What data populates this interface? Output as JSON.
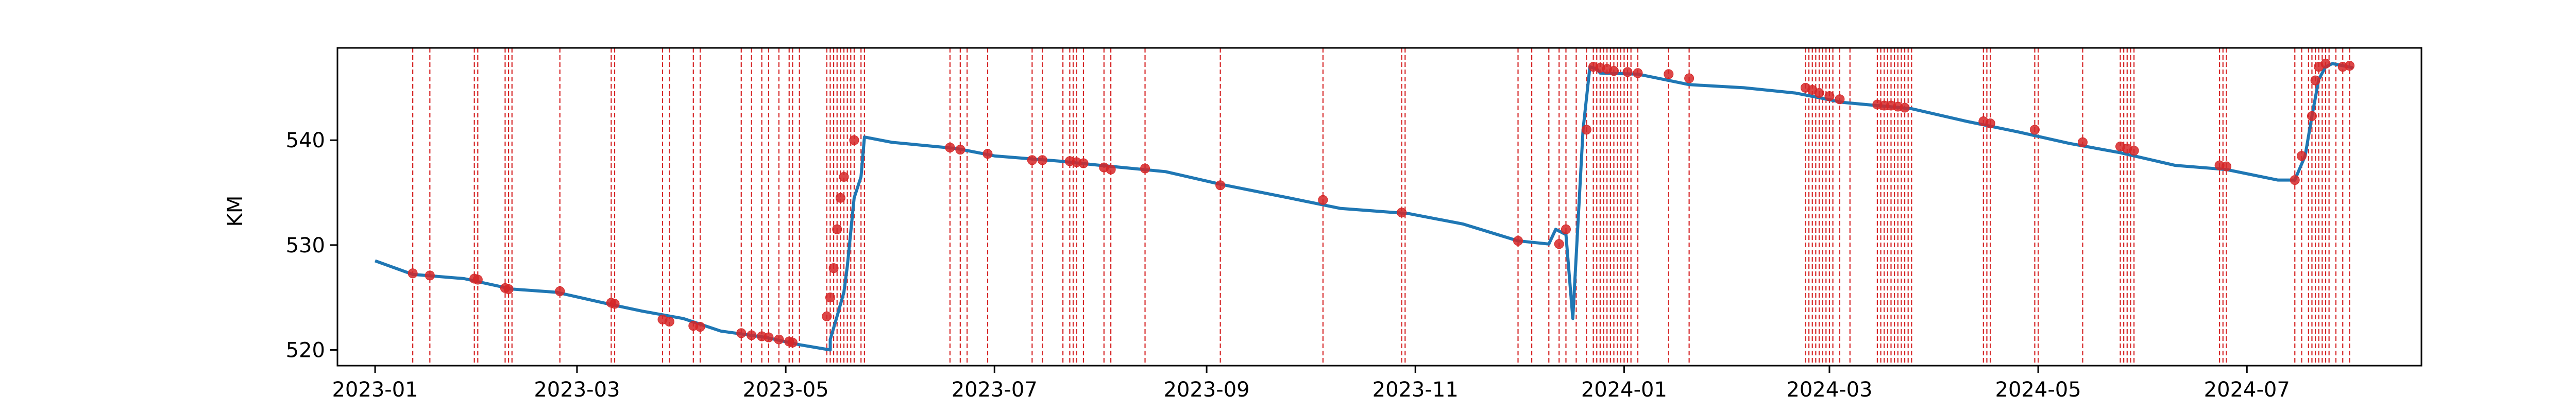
{
  "chart_data": {
    "type": "line",
    "title": "",
    "xlabel": "",
    "ylabel": "KM",
    "x_axis": "date",
    "xlim": [
      "2022-12-21",
      "2024-08-21"
    ],
    "ylim": [
      518.5,
      548.8
    ],
    "x_ticks": [
      "2023-01",
      "2023-03",
      "2023-05",
      "2023-07",
      "2023-09",
      "2023-11",
      "2024-01",
      "2024-03",
      "2024-05",
      "2024-07"
    ],
    "y_ticks": [
      520,
      530,
      540
    ],
    "grid": false,
    "legend": "none",
    "colors": {
      "line": "#1f77b4",
      "marker": "#d62728",
      "event_line": "#d62728"
    },
    "series": [
      {
        "x": [
          "2023-01-01",
          "2023-01-12",
          "2023-01-27",
          "2023-02-10",
          "2023-02-23",
          "2023-03-10",
          "2023-03-20",
          "2023-04-01",
          "2023-04-12",
          "2023-04-25",
          "2023-05-05",
          "2023-05-14",
          "2023-05-14",
          "2023-05-16",
          "2023-05-18",
          "2023-05-19",
          "2023-05-21",
          "2023-05-23",
          "2023-05-24",
          "2023-06-01",
          "2023-06-20",
          "2023-07-01",
          "2023-07-20",
          "2023-08-01",
          "2023-08-20",
          "2023-09-05",
          "2023-09-25",
          "2023-10-10",
          "2023-10-30",
          "2023-11-15",
          "2023-12-01",
          "2023-12-10",
          "2023-12-12",
          "2023-12-15",
          "2023-12-17",
          "2023-12-17",
          "2023-12-20",
          "2023-12-22",
          "2023-12-24",
          "2023-12-25",
          "2024-01-05",
          "2024-01-20",
          "2024-02-05",
          "2024-02-20",
          "2024-03-05",
          "2024-03-25",
          "2024-04-10",
          "2024-04-25",
          "2024-05-10",
          "2024-05-25",
          "2024-06-10",
          "2024-06-25",
          "2024-07-10",
          "2024-07-15",
          "2024-07-18",
          "2024-07-20",
          "2024-07-22",
          "2024-07-24",
          "2024-07-26",
          "2024-08-01"
        ],
        "y": [
          528.5,
          527.2,
          526.8,
          525.8,
          525.5,
          524.4,
          523.7,
          523.0,
          521.8,
          521.2,
          520.5,
          520.0,
          521.0,
          523.2,
          525.5,
          528.0,
          534.5,
          536.5,
          540.3,
          539.8,
          539.2,
          538.5,
          538.0,
          537.6,
          537.0,
          535.8,
          534.5,
          533.5,
          533.0,
          532.0,
          530.4,
          530.1,
          531.5,
          531.0,
          523.0,
          523.0,
          541.0,
          547.0,
          546.8,
          546.4,
          546.3,
          545.3,
          545.0,
          544.5,
          543.6,
          543.0,
          541.8,
          540.8,
          539.7,
          538.8,
          537.6,
          537.2,
          536.2,
          536.2,
          538.5,
          542.3,
          545.8,
          547.0,
          547.3,
          546.9
        ]
      }
    ],
    "markers": {
      "x": [
        "2023-01-12",
        "2023-01-17",
        "2023-01-30",
        "2023-01-31",
        "2023-02-08",
        "2023-02-09",
        "2023-02-24",
        "2023-03-11",
        "2023-03-12",
        "2023-03-26",
        "2023-03-28",
        "2023-04-04",
        "2023-04-06",
        "2023-04-18",
        "2023-04-21",
        "2023-04-24",
        "2023-04-26",
        "2023-04-29",
        "2023-05-02",
        "2023-05-03",
        "2023-05-13",
        "2023-05-14",
        "2023-05-15",
        "2023-05-16",
        "2023-05-17",
        "2023-05-18",
        "2023-05-21",
        "2023-06-18",
        "2023-06-21",
        "2023-06-29",
        "2023-07-12",
        "2023-07-15",
        "2023-07-23",
        "2023-07-25",
        "2023-07-27",
        "2023-08-02",
        "2023-08-04",
        "2023-08-14",
        "2023-09-05",
        "2023-10-05",
        "2023-10-28",
        "2023-12-01",
        "2023-12-13",
        "2023-12-15",
        "2023-12-21",
        "2023-12-23",
        "2023-12-25",
        "2023-12-27",
        "2023-12-29",
        "2024-01-02",
        "2024-01-05",
        "2024-01-14",
        "2024-01-20",
        "2024-02-23",
        "2024-02-25",
        "2024-02-27",
        "2024-03-01",
        "2024-03-04",
        "2024-03-15",
        "2024-03-17",
        "2024-03-19",
        "2024-03-21",
        "2024-03-23",
        "2024-04-15",
        "2024-04-17",
        "2024-04-30",
        "2024-05-14",
        "2024-05-25",
        "2024-05-27",
        "2024-05-29",
        "2024-06-23",
        "2024-06-25",
        "2024-07-15",
        "2024-07-17",
        "2024-07-20",
        "2024-07-21",
        "2024-07-22",
        "2024-07-24",
        "2024-07-29",
        "2024-07-31"
      ],
      "y": [
        527.3,
        527.1,
        526.8,
        526.7,
        525.9,
        525.8,
        525.6,
        524.5,
        524.4,
        522.9,
        522.7,
        522.3,
        522.2,
        521.6,
        521.4,
        521.3,
        521.2,
        521.0,
        520.8,
        520.7,
        523.2,
        525.0,
        527.8,
        531.5,
        534.5,
        536.5,
        540.0,
        539.3,
        539.1,
        538.7,
        538.1,
        538.1,
        538.0,
        537.9,
        537.8,
        537.4,
        537.2,
        537.3,
        535.7,
        534.3,
        533.1,
        530.4,
        530.1,
        531.5,
        541.0,
        547.0,
        546.9,
        546.8,
        546.6,
        546.5,
        546.4,
        546.3,
        545.9,
        545.0,
        544.8,
        544.5,
        544.2,
        543.9,
        543.4,
        543.3,
        543.3,
        543.2,
        543.1,
        541.8,
        541.6,
        541.0,
        539.8,
        539.4,
        539.2,
        539.0,
        537.6,
        537.5,
        536.2,
        538.5,
        542.3,
        545.7,
        547.0,
        547.3,
        547.0,
        547.1
      ]
    },
    "event_lines": [
      "2023-01-12",
      "2023-01-17",
      "2023-01-30",
      "2023-01-31",
      "2023-02-08",
      "2023-02-09",
      "2023-02-10",
      "2023-02-24",
      "2023-03-11",
      "2023-03-12",
      "2023-03-26",
      "2023-03-28",
      "2023-04-04",
      "2023-04-06",
      "2023-04-18",
      "2023-04-21",
      "2023-04-24",
      "2023-04-26",
      "2023-04-29",
      "2023-05-02",
      "2023-05-03",
      "2023-05-05",
      "2023-05-13",
      "2023-05-14",
      "2023-05-15",
      "2023-05-16",
      "2023-05-17",
      "2023-05-18",
      "2023-05-19",
      "2023-05-20",
      "2023-05-21",
      "2023-05-23",
      "2023-05-24",
      "2023-06-18",
      "2023-06-21",
      "2023-06-23",
      "2023-06-29",
      "2023-07-12",
      "2023-07-15",
      "2023-07-21",
      "2023-07-23",
      "2023-07-24",
      "2023-07-25",
      "2023-07-27",
      "2023-08-02",
      "2023-08-04",
      "2023-08-14",
      "2023-09-05",
      "2023-10-05",
      "2023-10-28",
      "2023-10-29",
      "2023-12-01",
      "2023-12-05",
      "2023-12-10",
      "2023-12-13",
      "2023-12-15",
      "2023-12-18",
      "2023-12-21",
      "2023-12-23",
      "2023-12-24",
      "2023-12-25",
      "2023-12-26",
      "2023-12-27",
      "2023-12-28",
      "2023-12-29",
      "2023-12-30",
      "2023-12-31",
      "2024-01-01",
      "2024-01-02",
      "2024-01-03",
      "2024-01-05",
      "2024-01-14",
      "2024-01-20",
      "2024-02-23",
      "2024-02-24",
      "2024-02-25",
      "2024-02-26",
      "2024-02-27",
      "2024-02-28",
      "2024-02-29",
      "2024-03-01",
      "2024-03-02",
      "2024-03-04",
      "2024-03-07",
      "2024-03-15",
      "2024-03-16",
      "2024-03-17",
      "2024-03-18",
      "2024-03-19",
      "2024-03-20",
      "2024-03-21",
      "2024-03-22",
      "2024-03-23",
      "2024-03-24",
      "2024-03-25",
      "2024-04-15",
      "2024-04-16",
      "2024-04-17",
      "2024-04-30",
      "2024-05-01",
      "2024-05-14",
      "2024-05-25",
      "2024-05-26",
      "2024-05-27",
      "2024-05-28",
      "2024-05-29",
      "2024-06-23",
      "2024-06-24",
      "2024-06-25",
      "2024-07-15",
      "2024-07-17",
      "2024-07-19",
      "2024-07-20",
      "2024-07-21",
      "2024-07-22",
      "2024-07-23",
      "2024-07-24",
      "2024-07-25",
      "2024-07-27",
      "2024-07-29",
      "2024-07-31"
    ]
  }
}
